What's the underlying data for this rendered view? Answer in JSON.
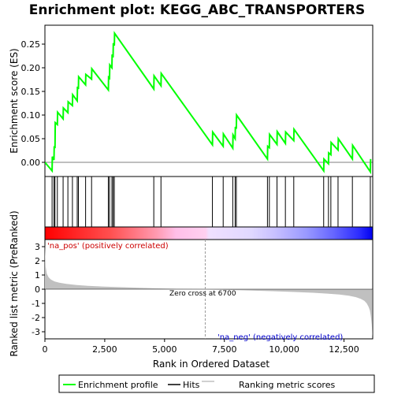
{
  "chart_data": {
    "type": "line",
    "title": "Enrichment plot: KEGG_ABC_TRANSPORTERS",
    "xlabel": "Rank in Ordered Dataset",
    "ylabel_top": "Enrichment score (ES)",
    "ylabel_bottom": "Ranked list metric (PreRanked)",
    "xlim": [
      0,
      13700
    ],
    "x_ticks": [
      0,
      2500,
      5000,
      7500,
      10000,
      12500
    ],
    "x_tick_labels": [
      "0",
      "2,500",
      "5,000",
      "7,500",
      "10,000",
      "12,500"
    ],
    "es_ylim": [
      -0.03,
      0.29
    ],
    "es_ticks": [
      0.0,
      0.05,
      0.1,
      0.15,
      0.2,
      0.25
    ],
    "es_tick_labels": [
      "0.00",
      "0.05",
      "0.10",
      "0.15",
      "0.20",
      "0.25"
    ],
    "metric_ylim": [
      -3.5,
      3.5
    ],
    "metric_ticks": [
      3,
      2,
      1,
      0,
      -1,
      -2,
      -3
    ],
    "metric_tick_labels": [
      "3",
      "2",
      "1",
      "0",
      "-1",
      "-2",
      "-3"
    ],
    "enrichment_profile": {
      "x": [
        0,
        300,
        310,
        380,
        390,
        420,
        430,
        520,
        530,
        760,
        770,
        960,
        970,
        1150,
        1160,
        1350,
        1360,
        1400,
        1410,
        1700,
        1710,
        1950,
        1960,
        2650,
        2660,
        2700,
        2710,
        2800,
        2810,
        2850,
        2860,
        2900,
        2910,
        4550,
        4560,
        4850,
        4860,
        7000,
        7010,
        7450,
        7460,
        7850,
        7860,
        7950,
        7960,
        8000,
        8010,
        9300,
        9310,
        9380,
        9390,
        9700,
        9710,
        10050,
        10060,
        10400,
        10410,
        11650,
        11660,
        11850,
        11860,
        11950,
        11960,
        12250,
        12260,
        12850,
        12860,
        13600,
        13610
      ],
      "y": [
        0.0,
        -0.018,
        0.012,
        0.005,
        0.034,
        0.03,
        0.084,
        0.08,
        0.106,
        0.092,
        0.115,
        0.105,
        0.128,
        0.12,
        0.143,
        0.13,
        0.16,
        0.155,
        0.181,
        0.164,
        0.186,
        0.176,
        0.198,
        0.153,
        0.18,
        0.178,
        0.206,
        0.2,
        0.228,
        0.222,
        0.252,
        0.247,
        0.273,
        0.155,
        0.183,
        0.162,
        0.188,
        0.037,
        0.064,
        0.034,
        0.06,
        0.03,
        0.058,
        0.05,
        0.075,
        0.071,
        0.1,
        0.007,
        0.034,
        0.031,
        0.059,
        0.038,
        0.065,
        0.04,
        0.064,
        0.046,
        0.07,
        -0.018,
        0.007,
        -0.003,
        0.02,
        0.016,
        0.042,
        0.026,
        0.05,
        0.007,
        0.036,
        -0.02,
        0.007
      ]
    },
    "hits": [
      300,
      380,
      420,
      520,
      760,
      960,
      1150,
      1350,
      1400,
      1700,
      1950,
      2650,
      2700,
      2800,
      2850,
      2900,
      4550,
      4850,
      7000,
      7450,
      7850,
      7950,
      8000,
      9300,
      9380,
      9700,
      10050,
      10400,
      11650,
      11850,
      11950,
      12250,
      12850,
      13600
    ],
    "zero_cross": 6700,
    "zero_cross_label": "Zero cross at 6700",
    "pos_label": "'na_pos' (positively correlated)",
    "neg_label": "'na_neg' (negatively correlated)",
    "metric_curve": {
      "x": [
        0,
        30,
        80,
        150,
        250,
        400,
        600,
        900,
        1300,
        1800,
        2500,
        3500,
        4500,
        5500,
        6700,
        7500,
        8500,
        9500,
        10500,
        11200,
        11800,
        12300,
        12700,
        13000,
        13200,
        13350,
        13450,
        13530,
        13580,
        13620,
        13660,
        13690
      ],
      "y": [
        3.2,
        1.6,
        1.1,
        0.85,
        0.68,
        0.55,
        0.46,
        0.38,
        0.3,
        0.24,
        0.18,
        0.12,
        0.07,
        0.03,
        0.0,
        -0.04,
        -0.09,
        -0.14,
        -0.2,
        -0.25,
        -0.31,
        -0.38,
        -0.46,
        -0.56,
        -0.68,
        -0.82,
        -1.0,
        -1.25,
        -1.5,
        -1.9,
        -2.5,
        -3.35
      ]
    },
    "legend": [
      {
        "label": "Enrichment profile",
        "color": "#00ff00"
      },
      {
        "label": "Hits",
        "color": "#000000"
      },
      {
        "label": "Ranking metric scores",
        "color": "#c0c0c0"
      }
    ],
    "colors": {
      "profile": "#00ff00",
      "metric_fill": "#c0c0c0",
      "pos_label": "#cc0000",
      "neg_label": "#0000cc"
    },
    "colorbar_stops": [
      {
        "at": 0.0,
        "color": "#ff0000"
      },
      {
        "at": 0.2,
        "color": "#ff5050"
      },
      {
        "at": 0.34,
        "color": "#ff9ab0"
      },
      {
        "at": 0.4,
        "color": "#ffbfe8"
      },
      {
        "at": 0.49,
        "color": "#ffd0f0"
      },
      {
        "at": 0.5,
        "color": "#f0e0ff"
      },
      {
        "at": 0.63,
        "color": "#e0d8ff"
      },
      {
        "at": 0.7,
        "color": "#c8c0ff"
      },
      {
        "at": 0.8,
        "color": "#9898ff"
      },
      {
        "at": 0.88,
        "color": "#6666ff"
      },
      {
        "at": 0.96,
        "color": "#2b2bff"
      },
      {
        "at": 1.0,
        "color": "#0000ee"
      }
    ]
  }
}
